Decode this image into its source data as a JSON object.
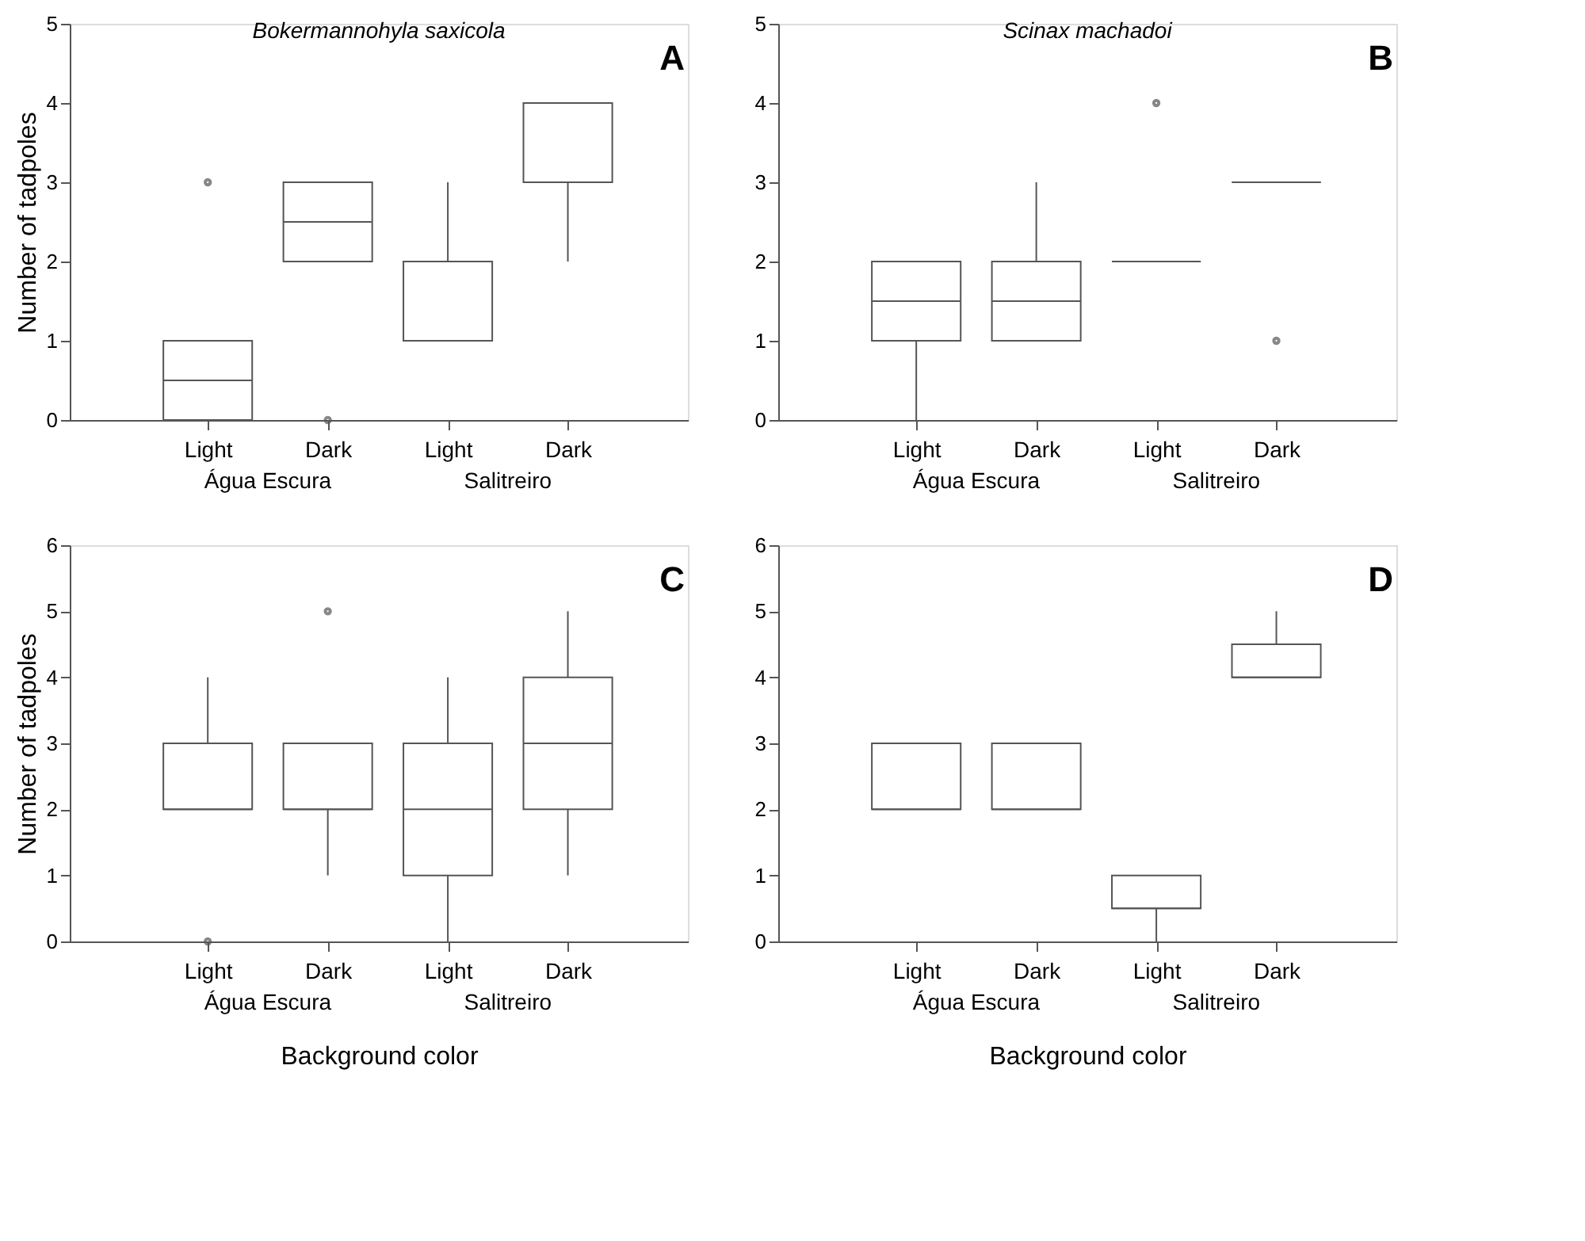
{
  "chart_data": [
    {
      "type": "box",
      "title": "Bokermannohyla saxicola",
      "ylabel": "Number of tadpoles",
      "categories": [
        "Light",
        "Dark",
        "Light",
        "Dark"
      ],
      "annotations": [
        "Água Escura",
        "Salitreiro",
        "A"
      ],
      "ylim": [
        0,
        5
      ],
      "yticks": [
        0,
        1,
        2,
        3,
        4,
        5
      ],
      "grid": false,
      "boxes": [
        {
          "low": 0,
          "q1": 0,
          "median": 0.5,
          "q3": 1,
          "high": 1,
          "outliers": [
            3
          ]
        },
        {
          "low": 2,
          "q1": 2,
          "median": 2.5,
          "q3": 3,
          "high": 3,
          "outliers": [
            0
          ]
        },
        {
          "low": 1,
          "q1": 1,
          "median": 1,
          "q3": 2,
          "high": 3
        },
        {
          "low": 2,
          "q1": 3,
          "median": 3,
          "q3": 4,
          "high": 4
        }
      ]
    },
    {
      "type": "box",
      "title": "Scinax machadoi",
      "categories": [
        "Light",
        "Dark",
        "Light",
        "Dark"
      ],
      "annotations": [
        "Água Escura",
        "Salitreiro",
        "B"
      ],
      "ylim": [
        0,
        5
      ],
      "yticks": [
        0,
        1,
        2,
        3,
        4,
        5
      ],
      "grid": false,
      "boxes": [
        {
          "low": 0,
          "q1": 1,
          "median": 1.5,
          "q3": 2,
          "high": 2
        },
        {
          "low": 1,
          "q1": 1,
          "median": 1.5,
          "q3": 2,
          "high": 3
        },
        {
          "low": 2,
          "q1": 2,
          "median": 2,
          "q3": 2,
          "high": 2,
          "outliers": [
            4
          ]
        },
        {
          "low": 3,
          "q1": 3,
          "median": 3,
          "q3": 3,
          "high": 3,
          "outliers": [
            1
          ]
        }
      ]
    },
    {
      "type": "box",
      "ylabel": "Number of tadpoles",
      "xlabel": "Background color",
      "categories": [
        "Light",
        "Dark",
        "Light",
        "Dark"
      ],
      "annotations": [
        "Água Escura",
        "Salitreiro",
        "C"
      ],
      "ylim": [
        0,
        6
      ],
      "yticks": [
        0,
        1,
        2,
        3,
        4,
        5,
        6
      ],
      "grid": false,
      "boxes": [
        {
          "low": 2,
          "q1": 2,
          "median": 2,
          "q3": 3,
          "high": 4,
          "outliers": [
            0
          ]
        },
        {
          "low": 1,
          "q1": 2,
          "median": 2,
          "q3": 3,
          "high": 3,
          "outliers": [
            5
          ]
        },
        {
          "low": 0,
          "q1": 1,
          "median": 2,
          "q3": 3,
          "high": 4
        },
        {
          "low": 1,
          "q1": 2,
          "median": 3,
          "q3": 4,
          "high": 5
        }
      ]
    },
    {
      "type": "box",
      "xlabel": "Background color",
      "categories": [
        "Light",
        "Dark",
        "Light",
        "Dark"
      ],
      "annotations": [
        "Água Escura",
        "Salitreiro",
        "D"
      ],
      "ylim": [
        0,
        6
      ],
      "yticks": [
        0,
        1,
        2,
        3,
        4,
        5,
        6
      ],
      "grid": false,
      "boxes": [
        {
          "low": 2,
          "q1": 2,
          "median": 2,
          "q3": 3,
          "high": 3
        },
        {
          "low": 2,
          "q1": 2,
          "median": 2,
          "q3": 3,
          "high": 3
        },
        {
          "low": 0,
          "q1": 0.5,
          "median": 0.5,
          "q3": 1,
          "high": 1
        },
        {
          "low": 4,
          "q1": 4,
          "median": 4,
          "q3": 4.5,
          "high": 5
        }
      ]
    }
  ]
}
